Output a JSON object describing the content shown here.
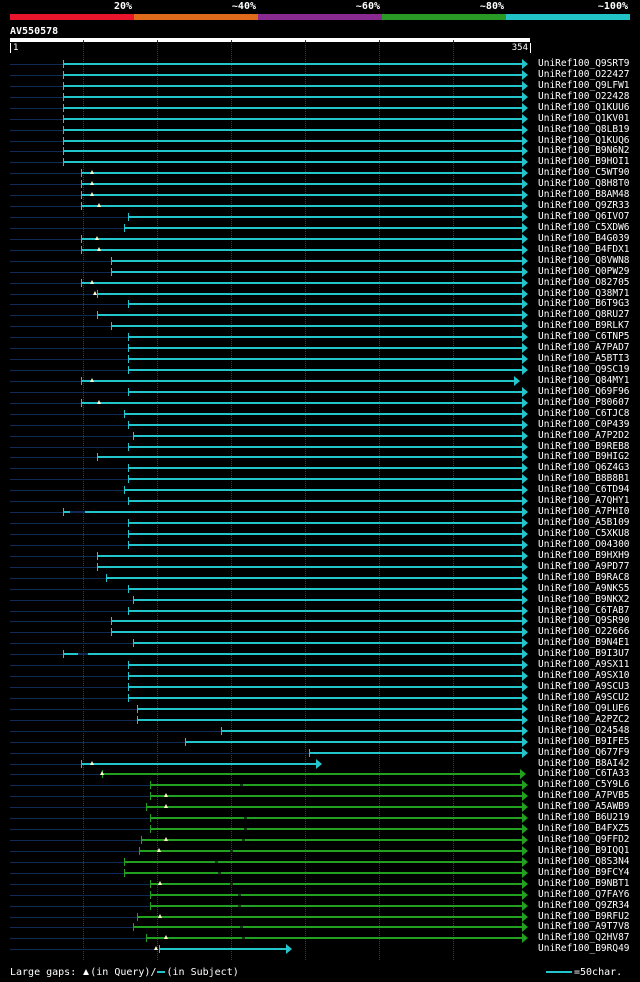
{
  "legend": {
    "labels": [
      "20%",
      "~40%",
      "~60%",
      "~80%",
      "~100%"
    ],
    "colors": [
      "#e8152d",
      "#e06a1c",
      "#8a2a90",
      "#2a9a26",
      "#21c3c6"
    ]
  },
  "query": {
    "id": "AV550578",
    "start": "1",
    "end": "354"
  },
  "footer": {
    "large_gaps_label": "Large gaps: ",
    "in_query": "(in Query)/",
    "in_subject": "(in Subject)",
    "scale": "=50char."
  },
  "hits": [
    {
      "id": "UniRef100_Q9SRT9",
      "color": "cyan",
      "start": 63,
      "end": 522,
      "tri": null,
      "arrow": true
    },
    {
      "id": "UniRef100_O22427",
      "color": "cyan",
      "start": 63,
      "end": 522,
      "tri": null,
      "arrow": true
    },
    {
      "id": "UniRef100_Q9LFW1",
      "color": "cyan",
      "start": 63,
      "end": 522,
      "tri": null,
      "arrow": true
    },
    {
      "id": "UniRef100_O22428",
      "color": "cyan",
      "start": 63,
      "end": 522,
      "tri": null,
      "arrow": true
    },
    {
      "id": "UniRef100_Q1KUU6",
      "color": "cyan",
      "start": 63,
      "end": 522,
      "tri": null,
      "arrow": true
    },
    {
      "id": "UniRef100_Q1KV01",
      "color": "cyan",
      "start": 63,
      "end": 522,
      "tri": null,
      "arrow": true
    },
    {
      "id": "UniRef100_Q8LB19",
      "color": "cyan",
      "start": 63,
      "end": 522,
      "tri": null,
      "arrow": true
    },
    {
      "id": "UniRef100_Q1KUQ6",
      "color": "cyan",
      "start": 63,
      "end": 522,
      "tri": null,
      "arrow": true
    },
    {
      "id": "UniRef100_B9N6N2",
      "color": "cyan",
      "start": 63,
      "end": 522,
      "tri": null,
      "arrow": true
    },
    {
      "id": "UniRef100_B9HOI1",
      "color": "cyan",
      "start": 63,
      "end": 522,
      "tri": null,
      "arrow": true
    },
    {
      "id": "UniRef100_C5WT90",
      "color": "cyan",
      "start": 81,
      "end": 522,
      "tri": 92,
      "arrow": true
    },
    {
      "id": "UniRef100_Q8H8T0",
      "color": "cyan",
      "start": 81,
      "end": 522,
      "tri": 92,
      "arrow": true
    },
    {
      "id": "UniRef100_B8AM48",
      "color": "cyan",
      "start": 81,
      "end": 522,
      "tri": 92,
      "arrow": true
    },
    {
      "id": "UniRef100_Q9ZR33",
      "color": "cyan",
      "start": 81,
      "end": 522,
      "tri": 99,
      "arrow": true
    },
    {
      "id": "UniRef100_Q6IVO7",
      "color": "cyan",
      "start": 128,
      "end": 522,
      "tri": null,
      "arrow": true
    },
    {
      "id": "UniRef100_C5XDW6",
      "color": "cyan",
      "start": 124,
      "end": 522,
      "tri": null,
      "arrow": true
    },
    {
      "id": "UniRef100_B4G039",
      "color": "cyan",
      "start": 81,
      "end": 522,
      "tri": 97,
      "arrow": true
    },
    {
      "id": "UniRef100_B4FDX1",
      "color": "cyan",
      "start": 81,
      "end": 522,
      "tri": 99,
      "arrow": true
    },
    {
      "id": "UniRef100_Q8VWN8",
      "color": "cyan",
      "start": 111,
      "end": 522,
      "tri": null,
      "arrow": true
    },
    {
      "id": "UniRef100_Q0PW29",
      "color": "cyan",
      "start": 111,
      "end": 522,
      "tri": null,
      "arrow": true
    },
    {
      "id": "UniRef100_O82705",
      "color": "cyan",
      "start": 81,
      "end": 522,
      "tri": 92,
      "arrow": true
    },
    {
      "id": "UniRef100_Q38M71",
      "color": "cyan",
      "start": 97,
      "end": 522,
      "tri": 95,
      "arrow": true
    },
    {
      "id": "UniRef100_B6T9G3",
      "color": "cyan",
      "start": 128,
      "end": 522,
      "tri": null,
      "arrow": true
    },
    {
      "id": "UniRef100_Q8RU27",
      "color": "cyan",
      "start": 97,
      "end": 522,
      "tri": null,
      "arrow": true
    },
    {
      "id": "UniRef100_B9RLK7",
      "color": "cyan",
      "start": 111,
      "end": 522,
      "tri": null,
      "arrow": true
    },
    {
      "id": "UniRef100_C6TNP5",
      "color": "cyan",
      "start": 128,
      "end": 522,
      "tri": null,
      "arrow": true
    },
    {
      "id": "UniRef100_A7PAD7",
      "color": "cyan",
      "start": 128,
      "end": 522,
      "tri": null,
      "arrow": true
    },
    {
      "id": "UniRef100_A5BTI3",
      "color": "cyan",
      "start": 128,
      "end": 522,
      "tri": null,
      "arrow": true
    },
    {
      "id": "UniRef100_Q9SC19",
      "color": "cyan",
      "start": 128,
      "end": 522,
      "tri": null,
      "arrow": true
    },
    {
      "id": "UniRef100_Q84MY1",
      "color": "cyan",
      "start": 81,
      "end": 514,
      "tri": 92,
      "arrow": true
    },
    {
      "id": "UniRef100_Q69F96",
      "color": "cyan",
      "start": 128,
      "end": 522,
      "tri": null,
      "arrow": true
    },
    {
      "id": "UniRef100_P80607",
      "color": "cyan",
      "start": 81,
      "end": 522,
      "tri": 99,
      "arrow": true
    },
    {
      "id": "UniRef100_C6TJC8",
      "color": "cyan",
      "start": 124,
      "end": 522,
      "tri": null,
      "arrow": true
    },
    {
      "id": "UniRef100_C0P439",
      "color": "cyan",
      "start": 128,
      "end": 522,
      "tri": null,
      "arrow": true
    },
    {
      "id": "UniRef100_A7P2D2",
      "color": "cyan",
      "start": 133,
      "end": 522,
      "tri": null,
      "arrow": true
    },
    {
      "id": "UniRef100_B9REB8",
      "color": "cyan",
      "start": 128,
      "end": 522,
      "tri": null,
      "arrow": true
    },
    {
      "id": "UniRef100_B9HIG2",
      "color": "cyan",
      "start": 97,
      "end": 522,
      "tri": null,
      "arrow": true
    },
    {
      "id": "UniRef100_Q6Z4G3",
      "color": "cyan",
      "start": 128,
      "end": 522,
      "tri": null,
      "arrow": true
    },
    {
      "id": "UniRef100_B8B8B1",
      "color": "cyan",
      "start": 128,
      "end": 522,
      "tri": null,
      "arrow": true
    },
    {
      "id": "UniRef100_C6TD94",
      "color": "cyan",
      "start": 124,
      "end": 522,
      "tri": null,
      "arrow": true
    },
    {
      "id": "UniRef100_A7QHY1",
      "color": "cyan",
      "start": 128,
      "end": 522,
      "tri": null,
      "arrow": true
    },
    {
      "id": "UniRef100_A7PHI0",
      "color": "cyan",
      "start": 63,
      "end": 522,
      "tri": null,
      "arrow": true,
      "gap": [
        70,
        85
      ]
    },
    {
      "id": "UniRef100_A5B109",
      "color": "cyan",
      "start": 128,
      "end": 522,
      "tri": null,
      "arrow": true
    },
    {
      "id": "UniRef100_C5XKU8",
      "color": "cyan",
      "start": 128,
      "end": 522,
      "tri": null,
      "arrow": true
    },
    {
      "id": "UniRef100_O04300",
      "color": "cyan",
      "start": 128,
      "end": 522,
      "tri": null,
      "arrow": true
    },
    {
      "id": "UniRef100_B9HXH9",
      "color": "cyan",
      "start": 97,
      "end": 522,
      "tri": null,
      "arrow": true
    },
    {
      "id": "UniRef100_A9PD77",
      "color": "cyan",
      "start": 97,
      "end": 522,
      "tri": null,
      "arrow": true
    },
    {
      "id": "UniRef100_B9RAC8",
      "color": "cyan",
      "start": 106,
      "end": 522,
      "tri": null,
      "arrow": true
    },
    {
      "id": "UniRef100_A9NKS5",
      "color": "cyan",
      "start": 128,
      "end": 522,
      "tri": null,
      "arrow": true
    },
    {
      "id": "UniRef100_B9NKX2",
      "color": "cyan",
      "start": 133,
      "end": 522,
      "tri": null,
      "arrow": true
    },
    {
      "id": "UniRef100_C6TAB7",
      "color": "cyan",
      "start": 128,
      "end": 522,
      "tri": null,
      "arrow": true
    },
    {
      "id": "UniRef100_Q9SR90",
      "color": "cyan",
      "start": 111,
      "end": 522,
      "tri": null,
      "arrow": true
    },
    {
      "id": "UniRef100_O22666",
      "color": "cyan",
      "start": 111,
      "end": 522,
      "tri": null,
      "arrow": true
    },
    {
      "id": "UniRef100_B9N4E1",
      "color": "cyan",
      "start": 133,
      "end": 522,
      "tri": null,
      "arrow": true
    },
    {
      "id": "UniRef100_B9I3U7",
      "color": "cyan",
      "start": 63,
      "end": 522,
      "tri": null,
      "arrow": true,
      "gap": [
        78,
        88
      ]
    },
    {
      "id": "UniRef100_A9SX11",
      "color": "cyan",
      "start": 128,
      "end": 522,
      "tri": null,
      "arrow": true
    },
    {
      "id": "UniRef100_A9SX10",
      "color": "cyan",
      "start": 128,
      "end": 522,
      "tri": null,
      "arrow": true
    },
    {
      "id": "UniRef100_A9SCU3",
      "color": "cyan",
      "start": 128,
      "end": 522,
      "tri": null,
      "arrow": true
    },
    {
      "id": "UniRef100_A9SCU2",
      "color": "cyan",
      "start": 128,
      "end": 522,
      "tri": null,
      "arrow": true
    },
    {
      "id": "UniRef100_Q9LUE6",
      "color": "cyan",
      "start": 137,
      "end": 522,
      "tri": null,
      "arrow": true
    },
    {
      "id": "UniRef100_A2PZC2",
      "color": "cyan",
      "start": 137,
      "end": 522,
      "tri": null,
      "arrow": true
    },
    {
      "id": "UniRef100_O24548",
      "color": "cyan",
      "start": 221,
      "end": 522,
      "tri": null,
      "arrow": true
    },
    {
      "id": "UniRef100_B9IFE5",
      "color": "cyan",
      "start": 185,
      "end": 522,
      "tri": null,
      "arrow": true
    },
    {
      "id": "UniRef100_Q677F9",
      "color": "cyan",
      "start": 309,
      "end": 522,
      "tri": null,
      "arrow": true
    },
    {
      "id": "UniRef100_B8AI42",
      "color": "cyan",
      "start": 81,
      "end": 316,
      "tri": 92,
      "arrow": true
    },
    {
      "id": "UniRef100_C6TA33",
      "color": "green",
      "start": 102,
      "end": 520,
      "tri": 102,
      "arrow": true
    },
    {
      "id": "UniRef100_C5Y9L6",
      "color": "green",
      "start": 150,
      "end": 522,
      "tri": null,
      "arrow": true,
      "mark": 240
    },
    {
      "id": "UniRef100_A7PVB5",
      "color": "green",
      "start": 150,
      "end": 522,
      "tri": 166,
      "arrow": true
    },
    {
      "id": "UniRef100_A5AWB9",
      "color": "green",
      "start": 146,
      "end": 522,
      "tri": 166,
      "arrow": true
    },
    {
      "id": "UniRef100_B6U219",
      "color": "green",
      "start": 150,
      "end": 522,
      "tri": null,
      "arrow": true,
      "mark": 244
    },
    {
      "id": "UniRef100_B4FXZ5",
      "color": "green",
      "start": 150,
      "end": 522,
      "tri": null,
      "arrow": true,
      "mark": 244
    },
    {
      "id": "UniRef100_Q9FFD2",
      "color": "green",
      "start": 141,
      "end": 522,
      "tri": 166,
      "arrow": true,
      "mark": 242
    },
    {
      "id": "UniRef100_B9IQQ1",
      "color": "green",
      "start": 139,
      "end": 522,
      "tri": 159,
      "arrow": true,
      "mark": 230
    },
    {
      "id": "UniRef100_Q8S3N4",
      "color": "green",
      "start": 124,
      "end": 522,
      "tri": null,
      "arrow": true,
      "mark": 215
    },
    {
      "id": "UniRef100_B9FCY4",
      "color": "green",
      "start": 124,
      "end": 522,
      "tri": null,
      "arrow": true,
      "mark": 218
    },
    {
      "id": "UniRef100_B9NBT1",
      "color": "green",
      "start": 150,
      "end": 522,
      "tri": 160,
      "arrow": true,
      "mark": 230
    },
    {
      "id": "UniRef100_Q7FAY6",
      "color": "green",
      "start": 150,
      "end": 522,
      "tri": null,
      "arrow": true,
      "mark": 238
    },
    {
      "id": "UniRef100_Q9ZR34",
      "color": "green",
      "start": 150,
      "end": 522,
      "tri": null,
      "arrow": true,
      "mark": 238
    },
    {
      "id": "UniRef100_B9RFU2",
      "color": "green",
      "start": 137,
      "end": 522,
      "tri": 160,
      "arrow": true
    },
    {
      "id": "UniRef100_A9T7V8",
      "color": "green",
      "start": 133,
      "end": 522,
      "tri": null,
      "arrow": true,
      "mark": 240
    },
    {
      "id": "UniRef100_Q2HV87",
      "color": "green",
      "start": 146,
      "end": 522,
      "tri": 166,
      "arrow": true,
      "mark": 242
    },
    {
      "id": "UniRef100_B9RQ49",
      "color": "cyan",
      "start": 159,
      "end": 286,
      "tri": 156,
      "arrow": true
    }
  ]
}
